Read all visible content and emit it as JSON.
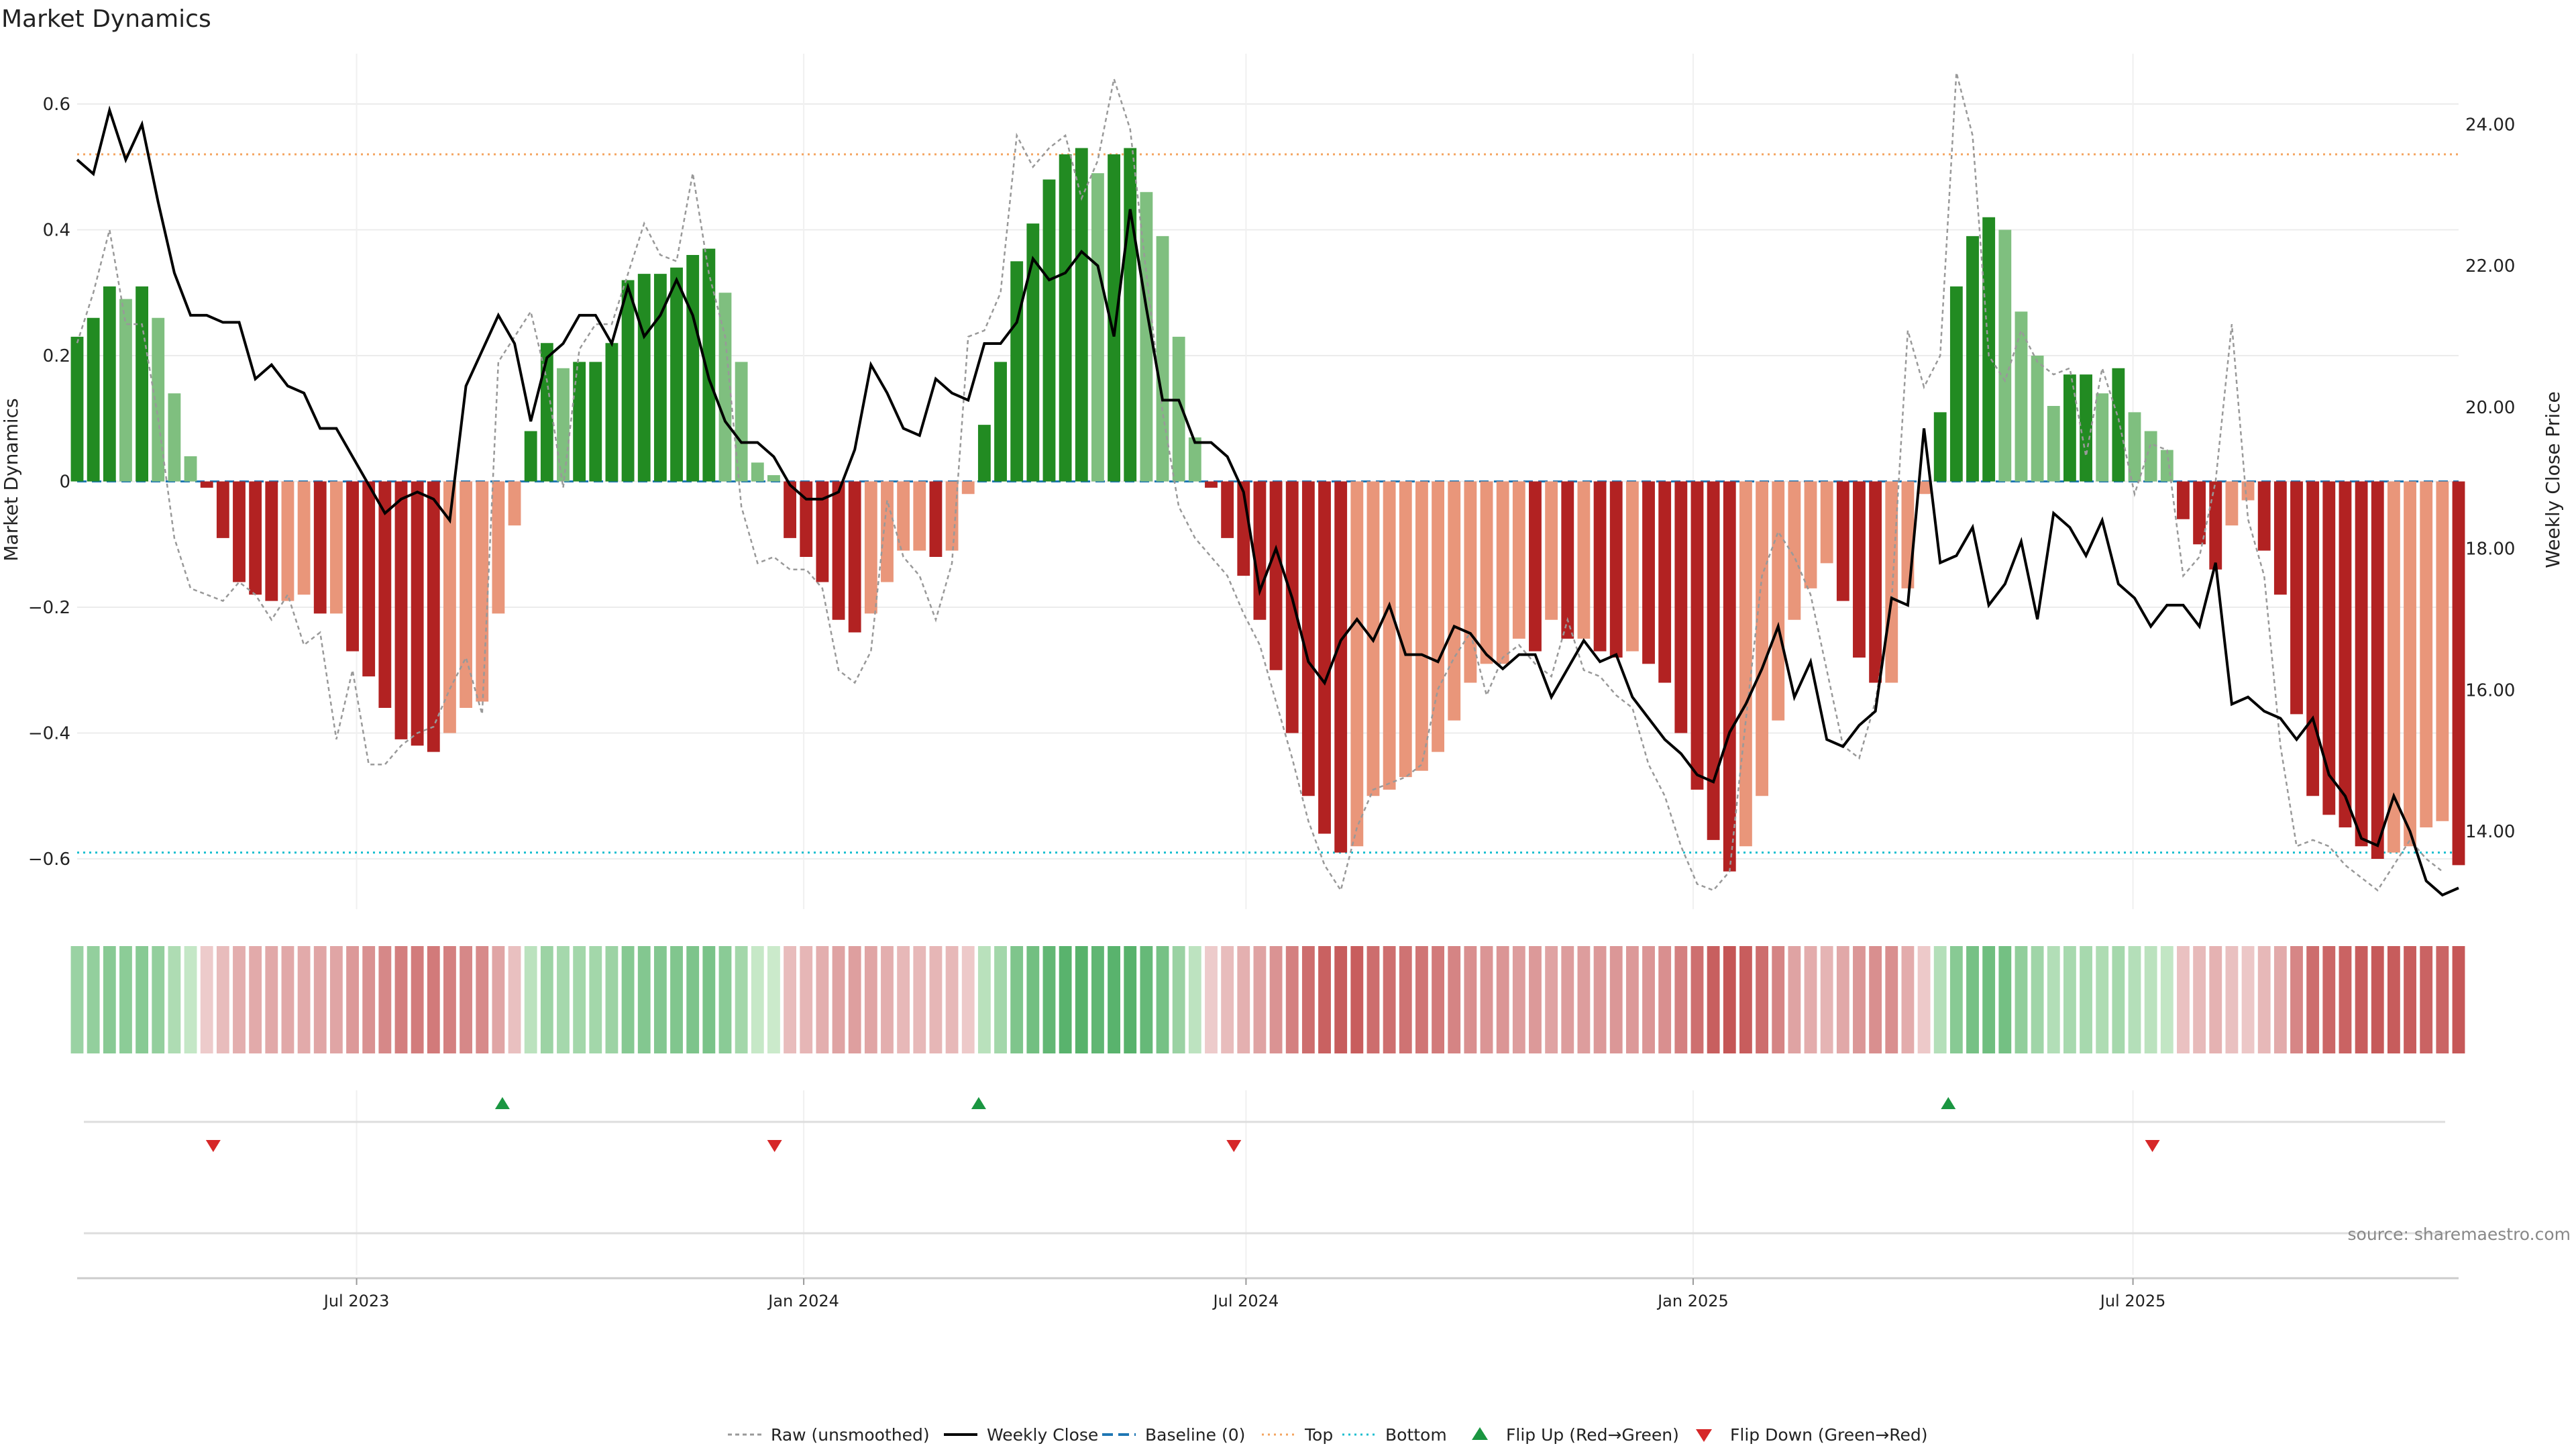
{
  "title": "Market Dynamics",
  "source": "source: sharemaestro.com",
  "chart_data": {
    "type": "bar",
    "title": "Market Dynamics",
    "ylabel": "Market Dynamics",
    "y2label": "Weekly Close Price",
    "ylim": [
      -0.68,
      0.68
    ],
    "y2lim": [
      12.9,
      25.0
    ],
    "yticks": [
      0.6,
      0.4,
      0.2,
      0,
      -0.2,
      -0.4,
      -0.6
    ],
    "ytick_labels": [
      "0.6",
      "0.4",
      "0.2",
      "0",
      "−0.2",
      "−0.4",
      "−0.6"
    ],
    "y2ticks": [
      24,
      22,
      20,
      18,
      16,
      14
    ],
    "y2tick_labels": [
      "24.00",
      "22.00",
      "20.00",
      "18.00",
      "16.00",
      "14.00"
    ],
    "x_start": "2023-03-08",
    "x_end": "2025-11-12",
    "xtick_dates": [
      "2023-07-01",
      "2024-01-01",
      "2024-07-01",
      "2025-01-01",
      "2025-07-01"
    ],
    "xtick_labels": [
      "Jul 2023",
      "Jan 2024",
      "Jul 2024",
      "Jan 2025",
      "Jul 2025"
    ],
    "top_line": 0.52,
    "bottom_line": -0.59,
    "baseline": 0,
    "grid": true,
    "legend_position": "bottom-center",
    "legend": [
      "Raw (unsmoothed)",
      "Weekly Close",
      "Baseline (0)",
      "Top",
      "Bottom",
      "Flip Up (Red→Green)",
      "Flip Down (Green→Red)"
    ],
    "colors": {
      "strong_green": "#228b22",
      "weak_green": "#7fbf7f",
      "strong_red": "#b22222",
      "weak_red": "#e9967a",
      "close_line": "#000000",
      "raw_line": "#999999",
      "baseline": "#1f77b4",
      "top": "#f4a460",
      "bottom": "#17becf",
      "flip_up": "#1a9641",
      "flip_down": "#d62728"
    },
    "series": [
      {
        "name": "Market Dynamics",
        "values": [
          0.23,
          0.26,
          0.31,
          0.29,
          0.31,
          0.26,
          0.14,
          0.04,
          -0.01,
          -0.09,
          -0.16,
          -0.18,
          -0.19,
          -0.19,
          -0.18,
          -0.21,
          -0.21,
          -0.27,
          -0.31,
          -0.36,
          -0.41,
          -0.42,
          -0.43,
          -0.4,
          -0.36,
          -0.35,
          -0.21,
          -0.07,
          0.08,
          0.22,
          0.18,
          0.19,
          0.19,
          0.22,
          0.32,
          0.33,
          0.33,
          0.34,
          0.36,
          0.37,
          0.3,
          0.19,
          0.03,
          0.01,
          -0.09,
          -0.12,
          -0.16,
          -0.22,
          -0.24,
          -0.21,
          -0.16,
          -0.11,
          -0.11,
          -0.12,
          -0.11,
          -0.02,
          0.09,
          0.19,
          0.35,
          0.41,
          0.48,
          0.52,
          0.53,
          0.49,
          0.52,
          0.53,
          0.46,
          0.39,
          0.23,
          0.07,
          -0.01,
          -0.09,
          -0.15,
          -0.22,
          -0.3,
          -0.4,
          -0.5,
          -0.56,
          -0.59,
          -0.58,
          -0.5,
          -0.49,
          -0.47,
          -0.46,
          -0.43,
          -0.38,
          -0.32,
          -0.29,
          -0.29,
          -0.25,
          -0.27,
          -0.22,
          -0.25,
          -0.25,
          -0.27,
          -0.28,
          -0.27,
          -0.29,
          -0.32,
          -0.4,
          -0.49,
          -0.57,
          -0.62,
          -0.58,
          -0.5,
          -0.38,
          -0.22,
          -0.17,
          -0.13,
          -0.19,
          -0.28,
          -0.32,
          -0.32,
          -0.17,
          -0.02,
          0.11,
          0.31,
          0.39,
          0.42,
          0.4,
          0.27,
          0.2,
          0.12,
          0.17,
          0.17,
          0.14,
          0.18,
          0.11,
          0.08,
          0.05,
          -0.06,
          -0.1,
          -0.14,
          -0.07,
          -0.03,
          -0.11,
          -0.18,
          -0.37,
          -0.5,
          -0.53,
          -0.55,
          -0.58,
          -0.6,
          -0.59,
          -0.58,
          -0.55,
          -0.54,
          -0.61
        ]
      },
      {
        "name": "Raw (unsmoothed)",
        "values": [
          0.22,
          0.3,
          0.4,
          0.25,
          0.25,
          0.1,
          -0.09,
          -0.17,
          -0.18,
          -0.19,
          -0.16,
          -0.18,
          -0.22,
          -0.18,
          -0.26,
          -0.24,
          -0.41,
          -0.3,
          -0.45,
          -0.45,
          -0.42,
          -0.4,
          -0.39,
          -0.33,
          -0.28,
          -0.37,
          0.19,
          0.23,
          0.27,
          0.16,
          -0.01,
          0.21,
          0.25,
          0.25,
          0.33,
          0.41,
          0.36,
          0.35,
          0.49,
          0.33,
          0.23,
          -0.04,
          -0.13,
          -0.12,
          -0.14,
          -0.14,
          -0.17,
          -0.3,
          -0.32,
          -0.27,
          -0.03,
          -0.12,
          -0.15,
          -0.22,
          -0.13,
          0.23,
          0.24,
          0.3,
          0.55,
          0.5,
          0.53,
          0.55,
          0.45,
          0.51,
          0.64,
          0.56,
          0.33,
          0.11,
          -0.04,
          -0.09,
          -0.12,
          -0.15,
          -0.21,
          -0.26,
          -0.35,
          -0.44,
          -0.54,
          -0.61,
          -0.65,
          -0.55,
          -0.49,
          -0.48,
          -0.47,
          -0.45,
          -0.33,
          -0.28,
          -0.24,
          -0.34,
          -0.28,
          -0.26,
          -0.29,
          -0.31,
          -0.22,
          -0.3,
          -0.31,
          -0.34,
          -0.36,
          -0.45,
          -0.5,
          -0.58,
          -0.64,
          -0.65,
          -0.62,
          -0.38,
          -0.15,
          -0.08,
          -0.12,
          -0.18,
          -0.3,
          -0.42,
          -0.44,
          -0.35,
          -0.19,
          0.24,
          0.15,
          0.2,
          0.65,
          0.55,
          0.2,
          0.16,
          0.24,
          0.19,
          0.17,
          0.18,
          0.04,
          0.18,
          0.1,
          -0.02,
          0.06,
          0.05,
          -0.15,
          -0.12,
          0.0,
          0.25,
          -0.06,
          -0.15,
          -0.42,
          -0.58,
          -0.57,
          -0.58,
          -0.61,
          -0.63,
          -0.65,
          -0.61,
          -0.57,
          -0.6,
          -0.62
        ]
      },
      {
        "name": "Weekly Close",
        "values": [
          23.5,
          23.3,
          24.2,
          23.5,
          24.0,
          22.9,
          21.9,
          21.3,
          21.3,
          21.2,
          21.2,
          20.4,
          20.6,
          20.3,
          20.2,
          19.7,
          19.7,
          19.3,
          18.9,
          18.5,
          18.7,
          18.8,
          18.7,
          18.4,
          20.3,
          20.8,
          21.3,
          20.9,
          19.8,
          20.7,
          20.9,
          21.3,
          21.3,
          20.9,
          21.7,
          21.0,
          21.3,
          21.8,
          21.3,
          20.4,
          19.8,
          19.5,
          19.5,
          19.3,
          18.9,
          18.7,
          18.7,
          18.8,
          19.4,
          20.6,
          20.2,
          19.7,
          19.6,
          20.4,
          20.2,
          20.1,
          20.9,
          20.9,
          21.2,
          22.1,
          21.8,
          21.9,
          22.2,
          22.0,
          21.0,
          22.8,
          21.4,
          20.1,
          20.1,
          19.5,
          19.5,
          19.3,
          18.8,
          17.4,
          18.0,
          17.3,
          16.4,
          16.1,
          16.7,
          17.0,
          16.7,
          17.2,
          16.5,
          16.5,
          16.4,
          16.9,
          16.8,
          16.5,
          16.3,
          16.5,
          16.5,
          15.9,
          16.3,
          16.7,
          16.4,
          16.5,
          15.9,
          15.6,
          15.3,
          15.1,
          14.8,
          14.7,
          15.4,
          15.8,
          16.3,
          16.9,
          15.9,
          16.4,
          15.3,
          15.2,
          15.5,
          15.7,
          17.3,
          17.2,
          19.7,
          17.8,
          17.9,
          18.3,
          17.2,
          17.5,
          18.1,
          17.0,
          18.5,
          18.3,
          17.9,
          18.4,
          17.5,
          17.3,
          16.9,
          17.2,
          17.2,
          16.9,
          17.8,
          15.8,
          15.9,
          15.7,
          15.6,
          15.3,
          15.6,
          14.8,
          14.5,
          13.9,
          13.8,
          14.5,
          14.0,
          13.3,
          13.1,
          13.2
        ]
      }
    ],
    "regime_strip": [
      {
        "color": "#8ccb8c"
      }
    ],
    "flip_up_dates": [
      "2023-08-30",
      "2024-03-13",
      "2025-04-16"
    ],
    "flip_down_dates": [
      "2023-05-03",
      "2023-12-20",
      "2024-06-26",
      "2025-07-09"
    ]
  }
}
